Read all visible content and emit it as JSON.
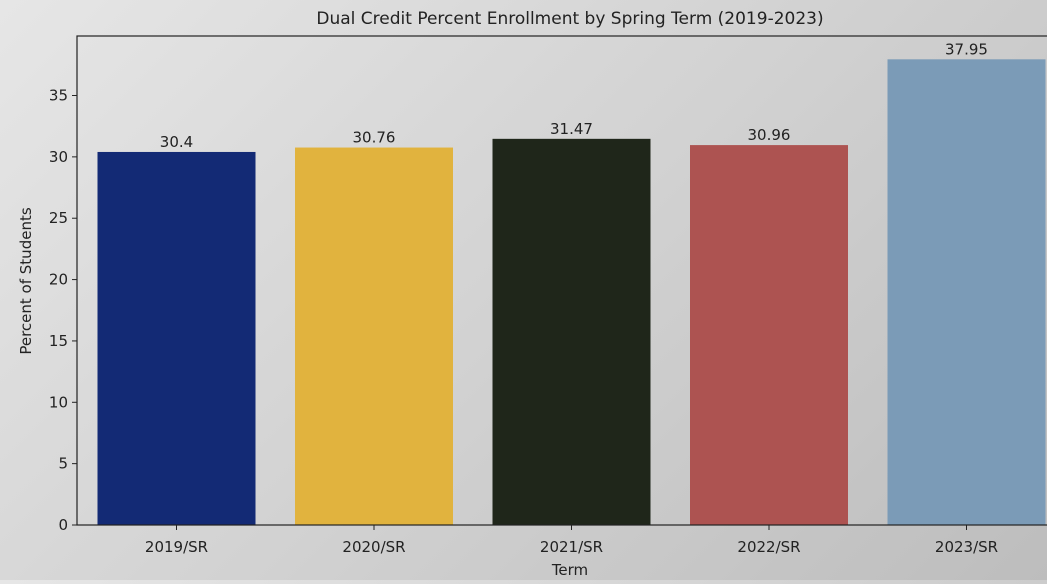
{
  "chart_data": {
    "type": "bar",
    "title": "Dual Credit Percent Enrollment by Spring Term (2019-2023)",
    "xlabel": "Term",
    "ylabel": "Percent of Students",
    "categories": [
      "2019/SR",
      "2020/SR",
      "2021/SR",
      "2022/SR",
      "2023/SR"
    ],
    "values": [
      30.4,
      30.76,
      31.47,
      30.96,
      37.95
    ],
    "data_labels": [
      "30.4",
      "30.76",
      "31.47",
      "30.96",
      "37.95"
    ],
    "colors": [
      "#132a75",
      "#e1b33e",
      "#1f261a",
      "#ad5351",
      "#7b9bb7"
    ],
    "ylim": [
      0,
      39.85
    ],
    "yticks": [
      0,
      5,
      10,
      15,
      20,
      25,
      30,
      35
    ],
    "grid": false,
    "legend": "none"
  }
}
